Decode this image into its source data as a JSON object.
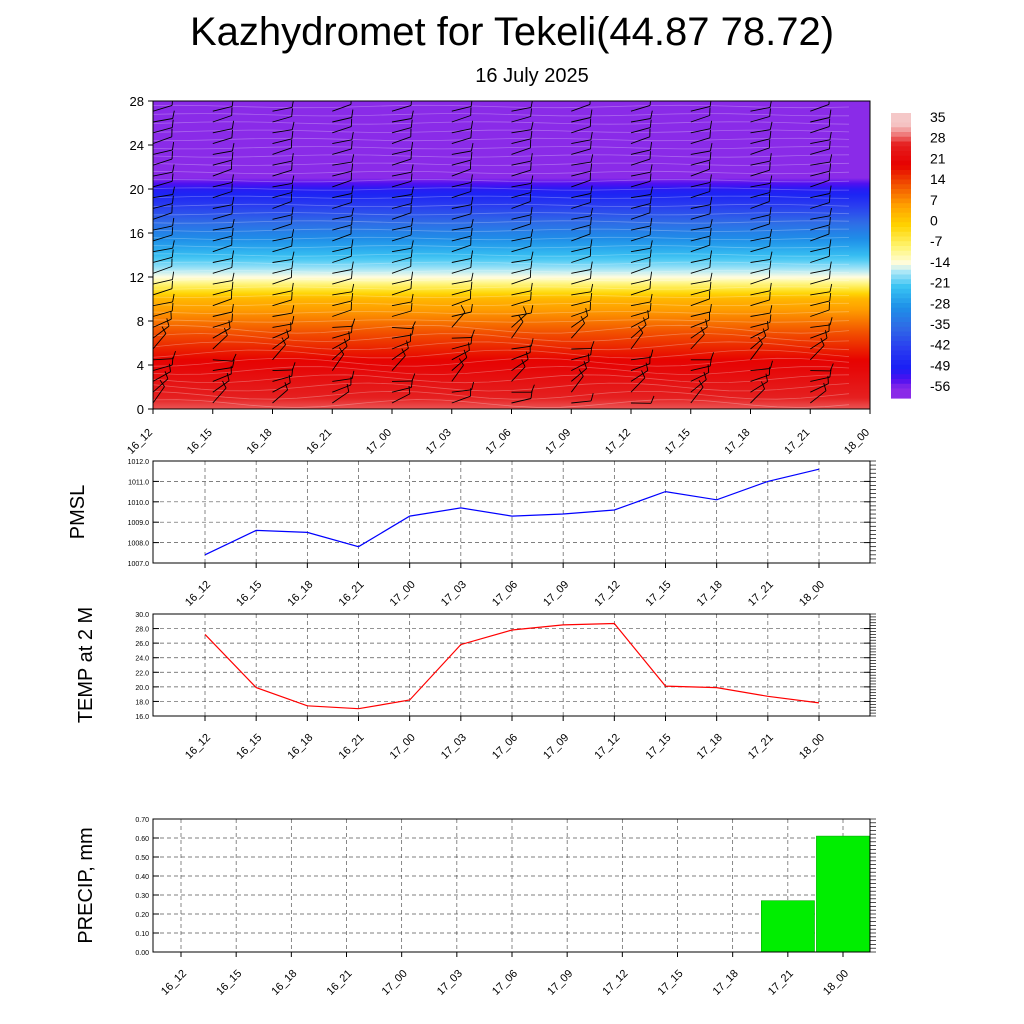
{
  "title": "Kazhydromet for Tekeli(44.87 78.72)",
  "subtitle": "16 July 2025",
  "chart_data": [
    {
      "type": "heatmap",
      "times": [
        "16_12",
        "16_15",
        "16_18",
        "16_21",
        "17_00",
        "17_03",
        "17_06",
        "17_09",
        "17_12",
        "17_15",
        "17_18",
        "17_21",
        "18_00"
      ],
      "ylim": [
        0,
        28
      ],
      "yticks": [
        "0",
        "4",
        "8",
        "12",
        "16",
        "20",
        "24",
        "28"
      ],
      "colorbar_labels": [
        "35",
        "28",
        "21",
        "14",
        "7",
        "0",
        "-7",
        "-14",
        "-21",
        "-28",
        "-35",
        "-42",
        "-49",
        "-56"
      ],
      "color_profile": [
        {
          "level": 0,
          "value": 30
        },
        {
          "level": 4,
          "value": 22
        },
        {
          "level": 7,
          "value": 14
        },
        {
          "level": 10,
          "value": 4
        },
        {
          "level": 12,
          "value": -13
        },
        {
          "level": 14,
          "value": -22
        },
        {
          "level": 17,
          "value": -35
        },
        {
          "level": 20,
          "value": -50
        },
        {
          "level": 21,
          "value": -56
        },
        {
          "level": 23,
          "value": -58
        },
        {
          "level": 28,
          "value": -60
        }
      ],
      "grid": false
    },
    {
      "type": "line",
      "ylabel": "PMSL",
      "x": [
        "16_12",
        "16_15",
        "16_18",
        "16_21",
        "17_00",
        "17_03",
        "17_06",
        "17_09",
        "17_12",
        "17_15",
        "17_18",
        "17_21",
        "18_00"
      ],
      "series": [
        {
          "values": [
            1007.4,
            1008.6,
            1008.5,
            1007.8,
            1009.3,
            1009.7,
            1009.3,
            1009.4,
            1009.6,
            1010.5,
            1010.1,
            1011.0,
            1011.6
          ],
          "color": "#0000ff"
        }
      ],
      "ylim": [
        1007.0,
        1012.0
      ],
      "yticks": [
        "1007.0",
        "1008.0",
        "1009.0",
        "1010.0",
        "1011.0",
        "1012.0"
      ],
      "grid": true
    },
    {
      "type": "line",
      "ylabel": "TEMP at 2 M",
      "x": [
        "16_12",
        "16_15",
        "16_18",
        "16_21",
        "17_00",
        "17_03",
        "17_06",
        "17_09",
        "17_12",
        "17_15",
        "17_18",
        "17_21",
        "18_00"
      ],
      "series": [
        {
          "values": [
            27.2,
            19.9,
            17.4,
            17.0,
            18.2,
            25.8,
            27.8,
            28.5,
            28.7,
            20.1,
            19.9,
            18.7,
            17.8
          ],
          "color": "#ff0000"
        }
      ],
      "ylim": [
        16.0,
        30.0
      ],
      "yticks": [
        "16.0",
        "18.0",
        "20.0",
        "22.0",
        "24.0",
        "26.0",
        "28.0",
        "30.0"
      ],
      "grid": true
    },
    {
      "type": "bar",
      "ylabel": "PRECIP, mm",
      "categories": [
        "16_12",
        "16_15",
        "16_18",
        "16_21",
        "17_00",
        "17_03",
        "17_06",
        "17_09",
        "17_12",
        "17_15",
        "17_18",
        "17_21",
        "18_00"
      ],
      "values": [
        0,
        0,
        0,
        0,
        0,
        0,
        0,
        0,
        0,
        0,
        0,
        0.27,
        0.61
      ],
      "ylim": [
        0,
        0.7
      ],
      "yticks": [
        "0.00",
        "0.10",
        "0.20",
        "0.30",
        "0.40",
        "0.50",
        "0.60",
        "0.70"
      ],
      "bar_color": "#00ee00",
      "grid": true
    }
  ]
}
